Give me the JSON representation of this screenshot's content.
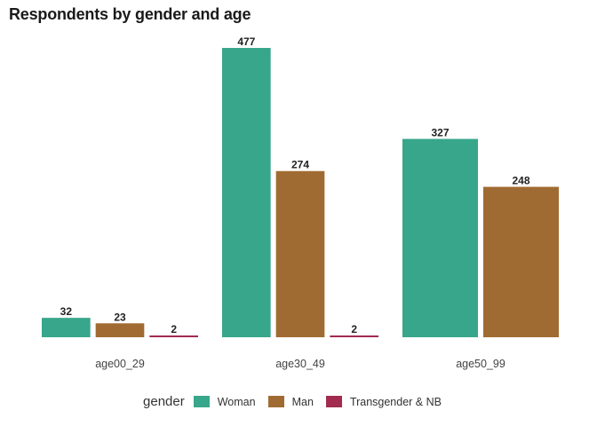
{
  "title": "Respondents by gender and age",
  "legend": {
    "title": "gender",
    "items": [
      {
        "label": "Woman",
        "color": "#38a68a"
      },
      {
        "label": "Man",
        "color": "#a06b32"
      },
      {
        "label": "Transgender & NB",
        "color": "#a12c4f"
      }
    ]
  },
  "chart_data": {
    "type": "bar",
    "title": "Respondents by gender and age",
    "xlabel": "",
    "ylabel": "",
    "ylim": [
      0,
      477
    ],
    "grid": false,
    "legend_position": "bottom",
    "categories": [
      "age00_29",
      "age30_49",
      "age50_99"
    ],
    "series": [
      {
        "name": "Woman",
        "color": "#38a68a",
        "values": [
          32,
          477,
          327
        ]
      },
      {
        "name": "Man",
        "color": "#a06b32",
        "values": [
          23,
          274,
          248
        ]
      },
      {
        "name": "Transgender & NB",
        "color": "#a12c4f",
        "values": [
          2,
          2,
          null
        ]
      }
    ]
  }
}
